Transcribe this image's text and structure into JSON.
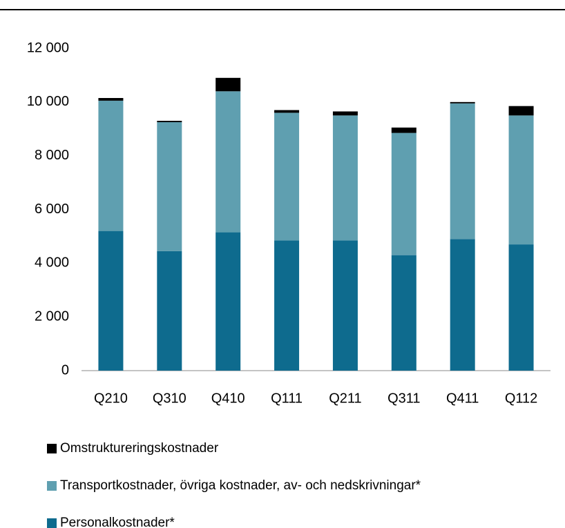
{
  "chart_data": {
    "type": "stacked_bar",
    "categories": [
      "Q210",
      "Q310",
      "Q410",
      "Q111",
      "Q211",
      "Q311",
      "Q411",
      "Q112"
    ],
    "series": [
      {
        "name": "Personalkostnader*",
        "color": "#0e6b8e",
        "values": [
          5200,
          4450,
          5150,
          4850,
          4850,
          4300,
          4900,
          4700
        ]
      },
      {
        "name": "Transportkostnader, övriga kostnader, av- och nedskrivningar*",
        "color": "#5f9fb0",
        "values": [
          4850,
          4800,
          5250,
          4750,
          4650,
          4550,
          5050,
          4800
        ]
      },
      {
        "name": "Omstruktureringskostnader",
        "color": "#000000",
        "values": [
          100,
          50,
          500,
          100,
          150,
          200,
          50,
          350
        ]
      }
    ],
    "ylim": [
      0,
      12000
    ],
    "yticks": [
      0,
      {
        "value": 2000,
        "label": "2 000"
      },
      {
        "value": 4000,
        "label": "4 000"
      },
      {
        "value": 6000,
        "label": "6 000"
      },
      {
        "value": 8000,
        "label": "8 000"
      },
      {
        "value": 10000,
        "label": "10 000"
      },
      {
        "value": 12000,
        "label": "12 000"
      }
    ],
    "legend": "bottom-left",
    "grid": false
  }
}
